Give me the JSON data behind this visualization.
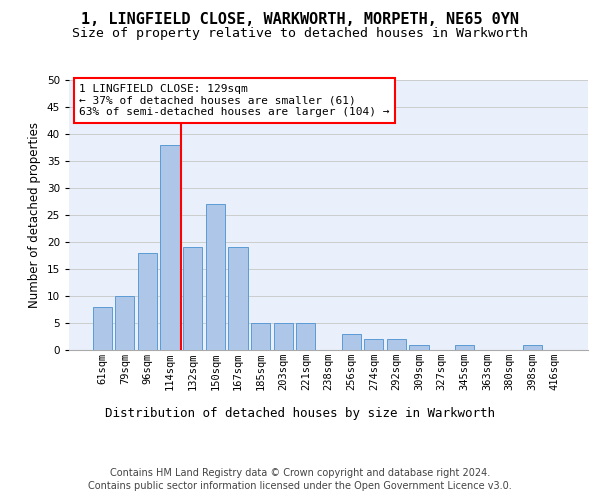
{
  "title1": "1, LINGFIELD CLOSE, WARKWORTH, MORPETH, NE65 0YN",
  "title2": "Size of property relative to detached houses in Warkworth",
  "xlabel": "Distribution of detached houses by size in Warkworth",
  "ylabel": "Number of detached properties",
  "categories": [
    "61sqm",
    "79sqm",
    "96sqm",
    "114sqm",
    "132sqm",
    "150sqm",
    "167sqm",
    "185sqm",
    "203sqm",
    "221sqm",
    "238sqm",
    "256sqm",
    "274sqm",
    "292sqm",
    "309sqm",
    "327sqm",
    "345sqm",
    "363sqm",
    "380sqm",
    "398sqm",
    "416sqm"
  ],
  "values": [
    8,
    10,
    18,
    38,
    19,
    27,
    19,
    5,
    5,
    5,
    0,
    3,
    2,
    2,
    1,
    0,
    1,
    0,
    0,
    1,
    0
  ],
  "bar_color": "#aec6e8",
  "bar_edgecolor": "#5b9bd5",
  "annotation_text": "1 LINGFIELD CLOSE: 129sqm\n← 37% of detached houses are smaller (61)\n63% of semi-detached houses are larger (104) →",
  "annotation_box_color": "white",
  "annotation_box_edgecolor": "red",
  "vline_color": "red",
  "ylim": [
    0,
    50
  ],
  "yticks": [
    0,
    5,
    10,
    15,
    20,
    25,
    30,
    35,
    40,
    45,
    50
  ],
  "grid_color": "#cccccc",
  "bg_color": "#eaf0fb",
  "footer1": "Contains HM Land Registry data © Crown copyright and database right 2024.",
  "footer2": "Contains public sector information licensed under the Open Government Licence v3.0.",
  "title_fontsize": 11,
  "subtitle_fontsize": 9.5,
  "axis_label_fontsize": 8.5,
  "tick_fontsize": 7.5,
  "footer_fontsize": 7,
  "annotation_fontsize": 8
}
